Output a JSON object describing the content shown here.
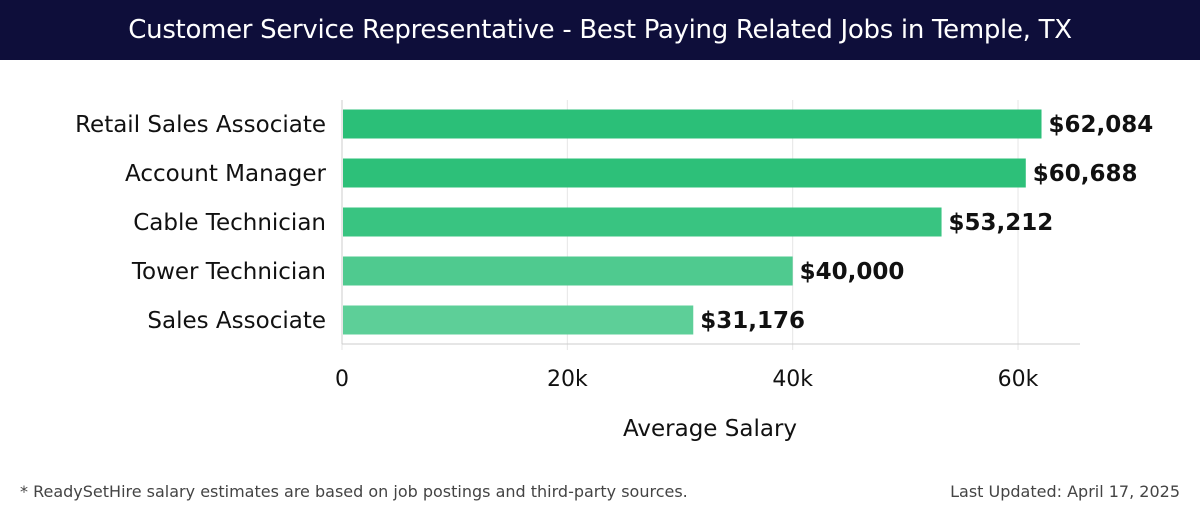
{
  "header": {
    "title": "Customer Service Representative - Best Paying Related Jobs in Temple, TX"
  },
  "chart_data": {
    "type": "bar",
    "orientation": "horizontal",
    "categories": [
      "Retail Sales Associate",
      "Account Manager",
      "Cable Technician",
      "Tower Technician",
      "Sales Associate"
    ],
    "values": [
      62084,
      60688,
      53212,
      40000,
      31176
    ],
    "value_labels": [
      "$62,084",
      "$60,688",
      "$53,212",
      "$40,000",
      "$31,176"
    ],
    "xlabel": "Average Salary",
    "ylabel": "",
    "xlim": [
      0,
      65500
    ],
    "xticks": [
      0,
      20000,
      40000,
      60000
    ],
    "xtick_labels": [
      "0",
      "20k",
      "40k",
      "60k"
    ],
    "grid": true,
    "colors": {
      "bar_dark": "#2bbf78",
      "bar_light": "#5dcf98",
      "grid": "#e6e6e6",
      "axis": "#cccccc"
    }
  },
  "footer": {
    "note": "* ReadySetHire salary estimates are based on job postings and third-party sources.",
    "updated": "Last Updated: April 17, 2025"
  }
}
